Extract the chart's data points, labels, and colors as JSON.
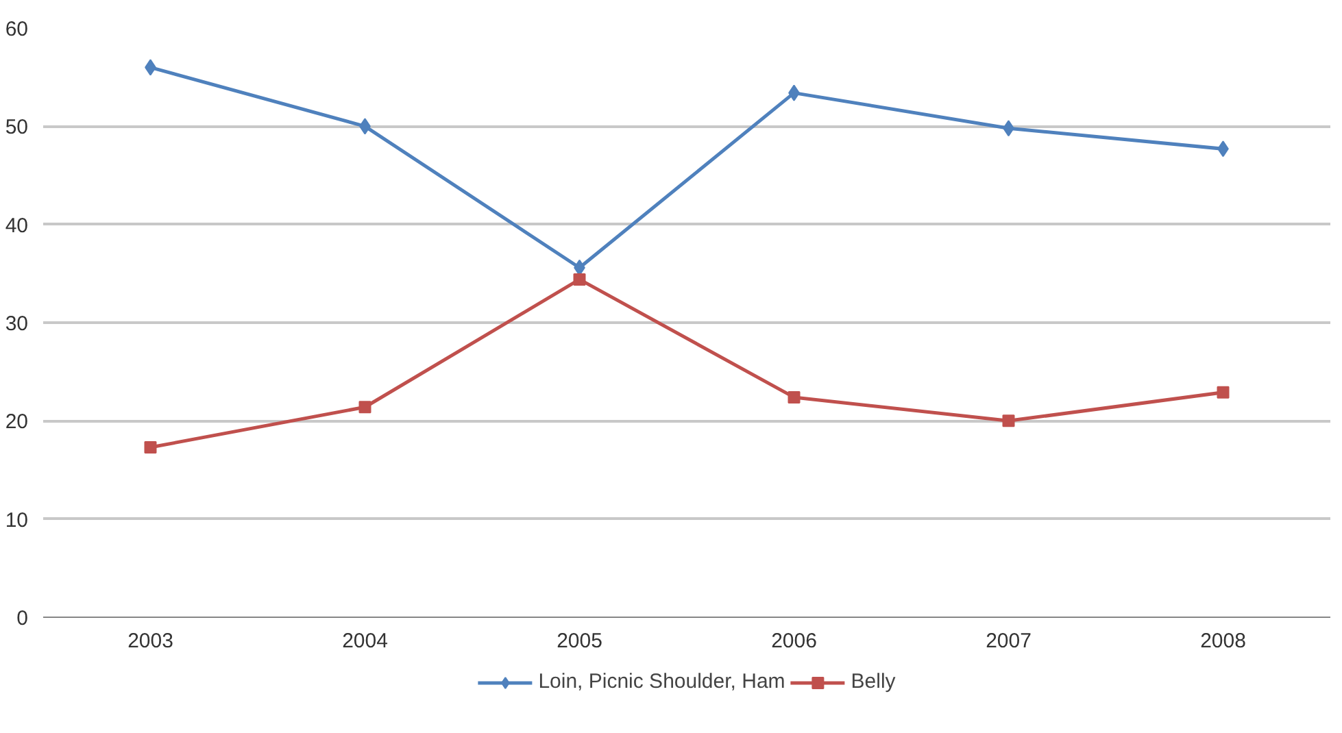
{
  "chart_data": {
    "type": "line",
    "categories": [
      "2003",
      "2004",
      "2005",
      "2006",
      "2007",
      "2008"
    ],
    "series": [
      {
        "name": "Loin, Picnic Shoulder, Ham",
        "color": "#4f81bd",
        "marker": "diamond",
        "values": [
          56,
          50,
          35.6,
          53.4,
          49.8,
          47.7
        ]
      },
      {
        "name": "Belly",
        "color": "#c0504d",
        "marker": "square",
        "values": [
          17.3,
          21.4,
          34.4,
          22.4,
          20,
          22.9
        ]
      }
    ],
    "ylim": [
      0,
      60
    ],
    "yticks": [
      0,
      10,
      20,
      30,
      40,
      50,
      60
    ],
    "grid": "y",
    "legend": "bottom",
    "line_style": "solid"
  }
}
